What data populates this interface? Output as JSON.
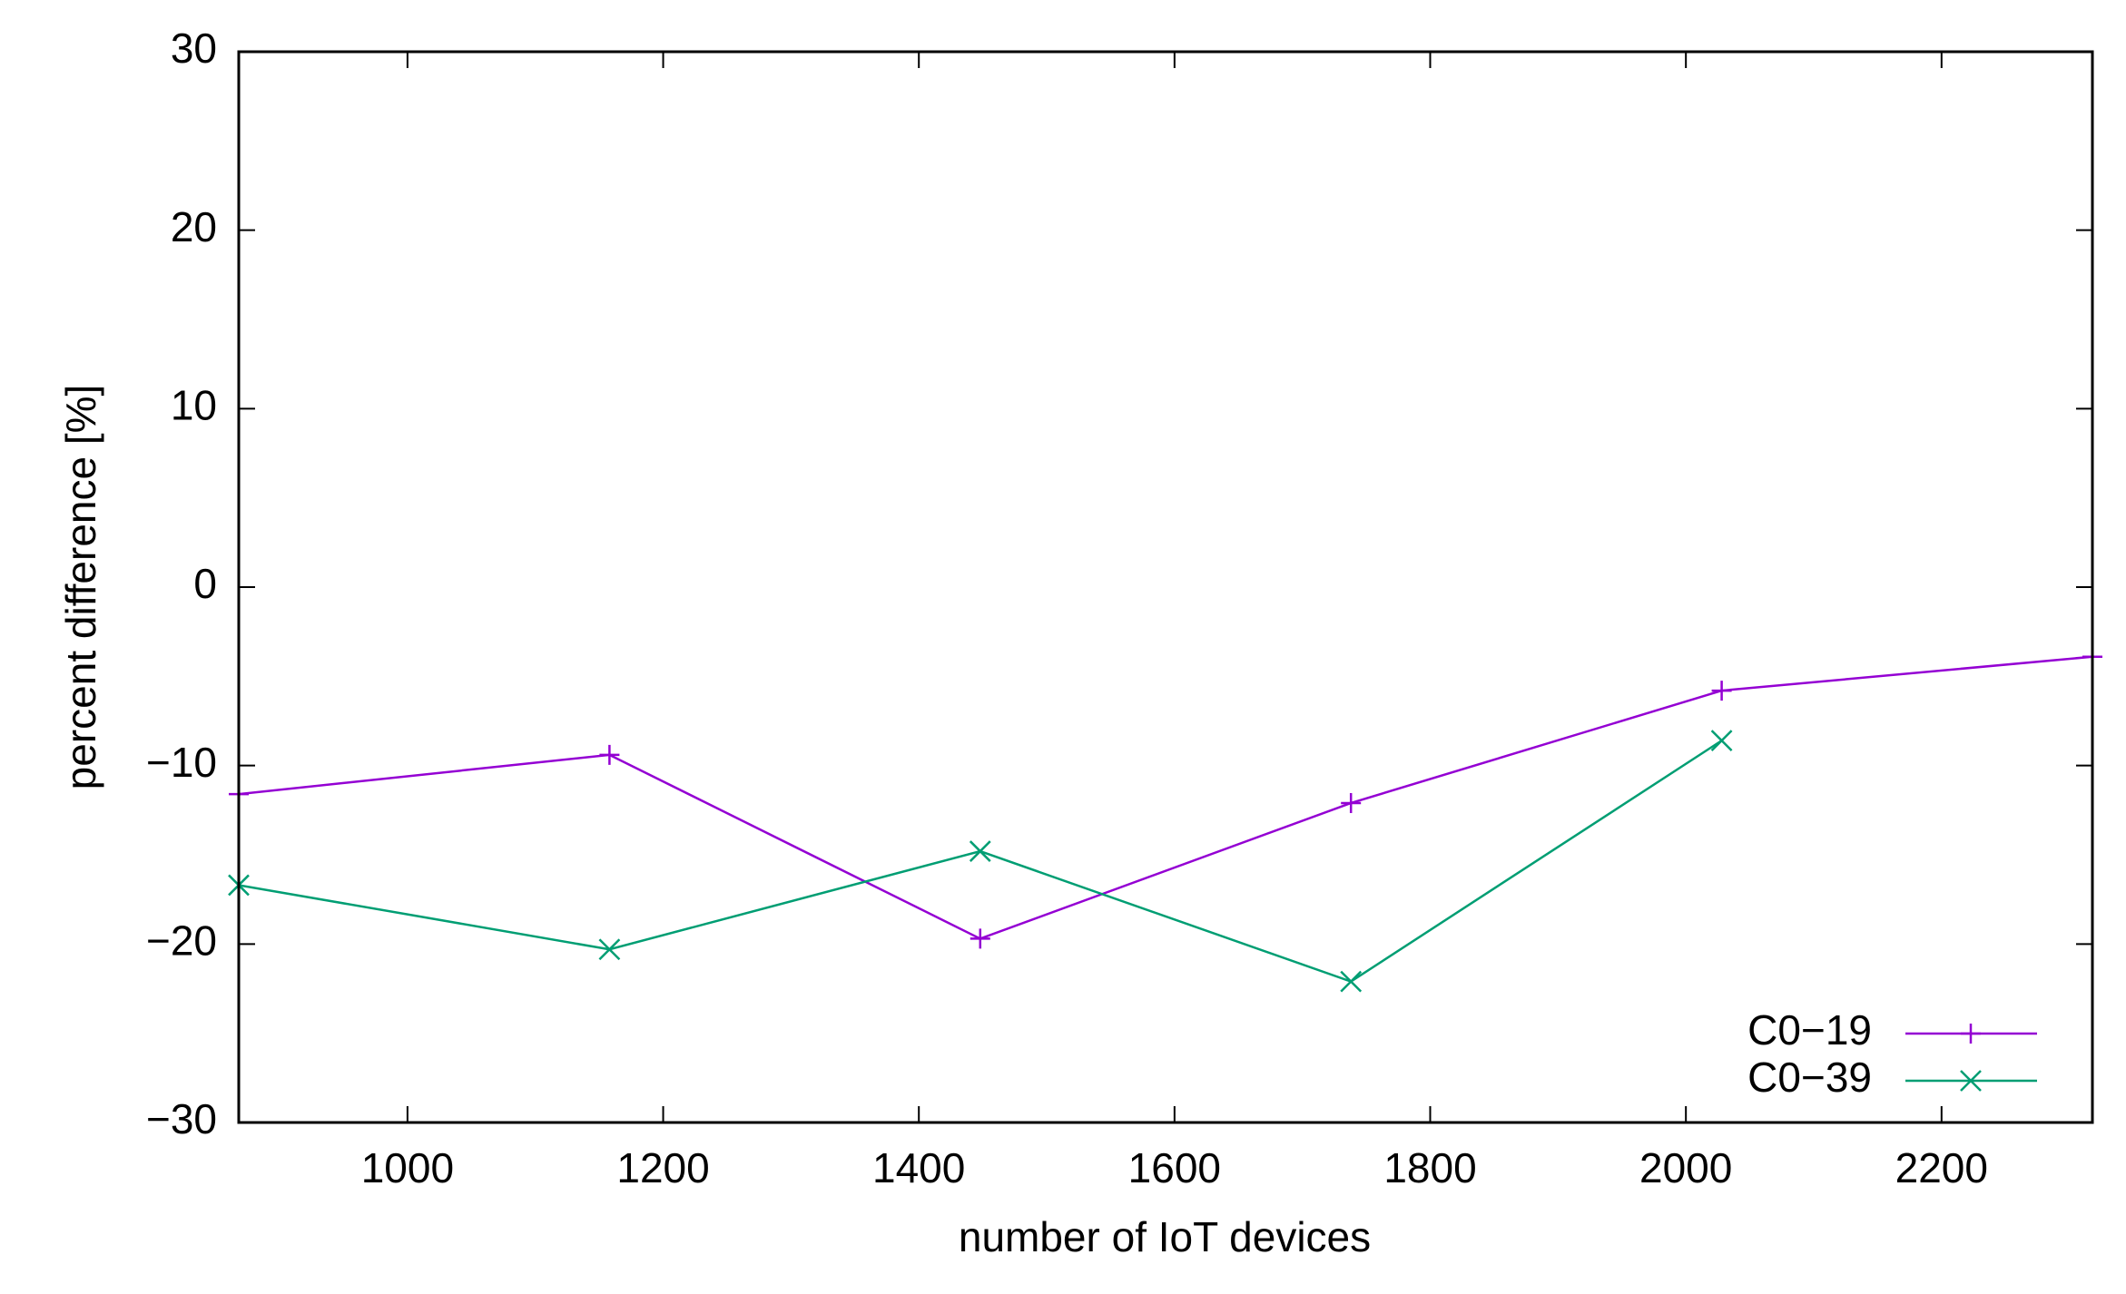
{
  "chart_data": {
    "type": "line",
    "x_label": "number of IoT devices",
    "y_label": "percent difference [%]",
    "x": [
      868,
      1158,
      1448,
      1738,
      2028,
      2318
    ],
    "series": [
      {
        "name": "C0−19",
        "color": "#9400d3",
        "marker": "plus",
        "values": [
          -11.6,
          -9.4,
          -19.7,
          -12.1,
          -5.8,
          -3.9
        ]
      },
      {
        "name": "C0−39",
        "color": "#009e73",
        "marker": "cross",
        "values": [
          -16.7,
          -20.3,
          -14.8,
          -22.1,
          -8.6,
          null
        ]
      }
    ],
    "xlim": [
      868,
      2318
    ],
    "ylim": [
      -30,
      30
    ],
    "xticks": [
      1000,
      1200,
      1400,
      1600,
      1800,
      2000,
      2200
    ],
    "yticks": [
      {
        "value": -30,
        "label": "−30"
      },
      {
        "value": -20,
        "label": "−20"
      },
      {
        "value": -10,
        "label": "−10"
      },
      0,
      10,
      20,
      30
    ],
    "legend": "lower right"
  }
}
